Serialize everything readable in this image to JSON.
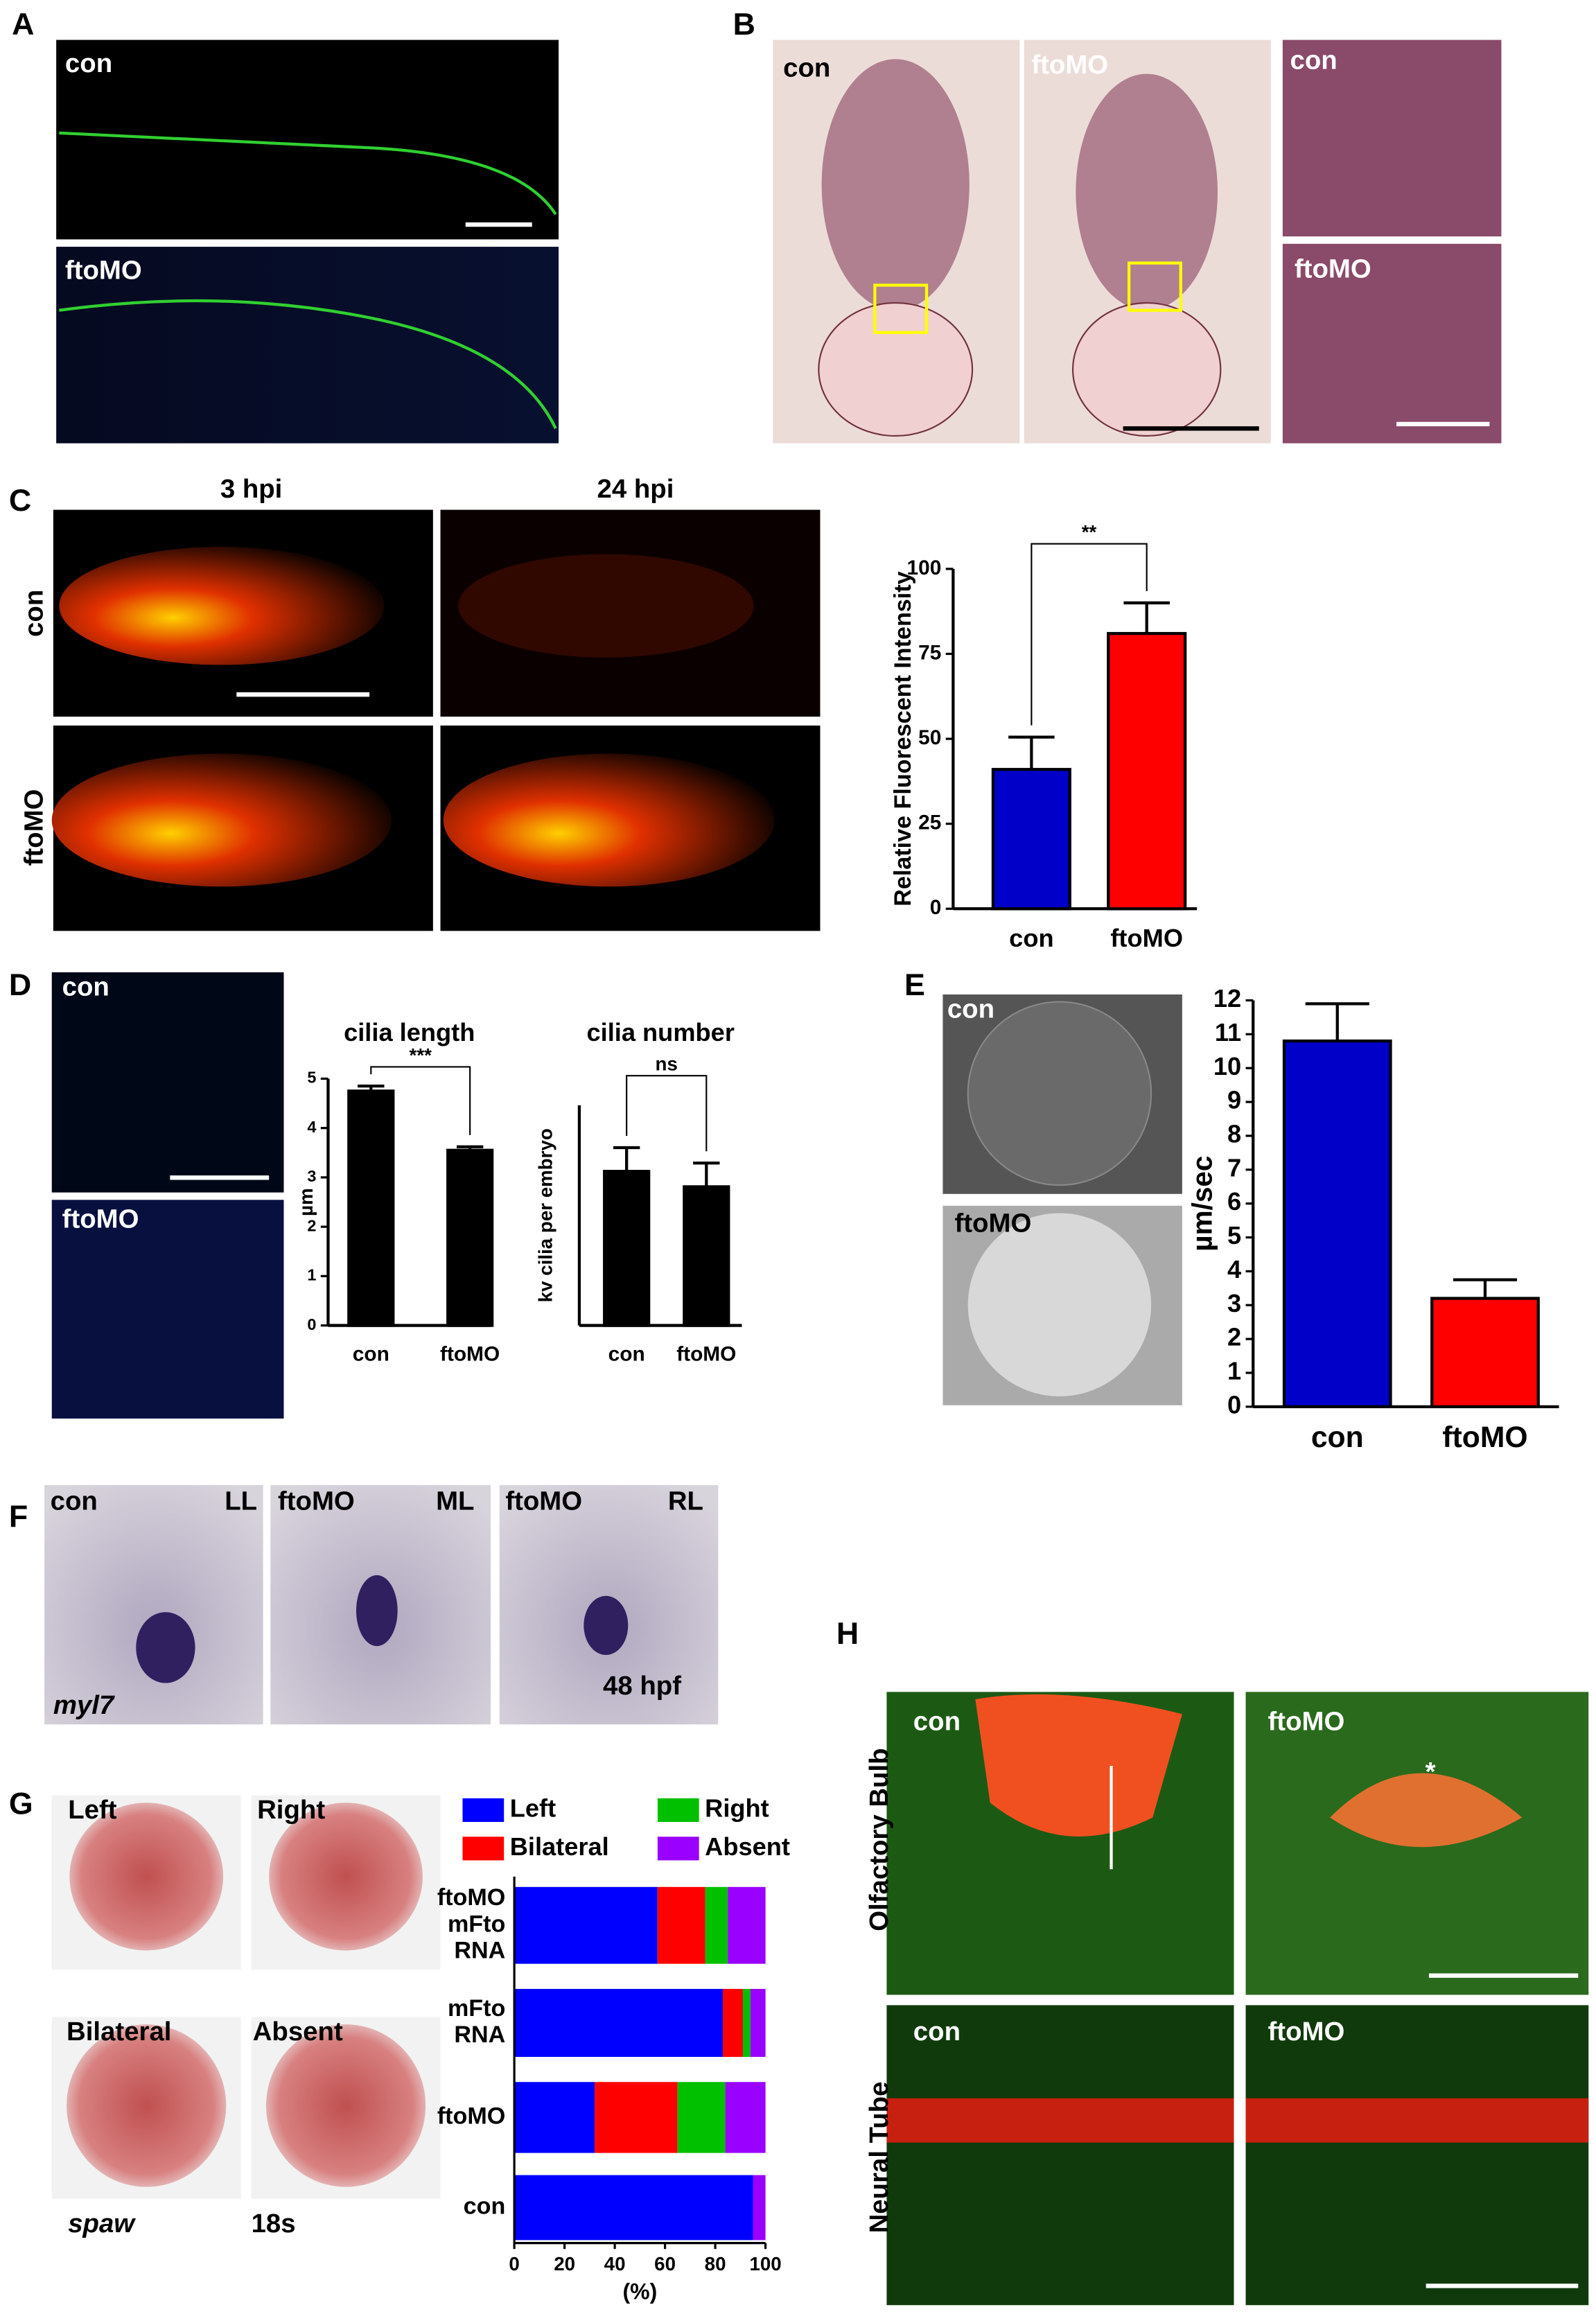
{
  "panel_labels": [
    "A",
    "B",
    "C",
    "D",
    "E",
    "F",
    "G",
    "H"
  ],
  "panel_text": {
    "A": [
      "con",
      "ftoMO"
    ],
    "B": [
      "con",
      "ftoMO",
      "con",
      "ftoMO"
    ],
    "C": [
      "3 hpi",
      "24 hpi",
      "con",
      "ftoMO"
    ],
    "D": [
      "con",
      "ftoMO"
    ],
    "E": [
      "con",
      "ftoMO"
    ],
    "F": [
      "con",
      "LL",
      "ftoMO",
      "ML",
      "ftoMO",
      "RL",
      "myl7",
      "48 hpf"
    ],
    "G": [
      "Left",
      "Right",
      "Bilateral",
      "Absent",
      "spaw",
      "18s"
    ],
    "H": [
      "con",
      "ftoMO",
      "con",
      "ftoMO",
      "Olfactory Bulb",
      "Neural Tube",
      "*"
    ]
  },
  "chart_data": [
    {
      "type": "bar",
      "ylabel": "Relative Fluorescent Intensity",
      "categories": [
        "con",
        "ftoMO"
      ],
      "values": [
        41,
        81
      ],
      "errors": [
        9.5,
        9
      ],
      "colors": [
        "#0000c8",
        "#ff0000"
      ],
      "ylim": [
        0,
        100
      ],
      "yticks": [
        0,
        25,
        50,
        75,
        100
      ],
      "annotation": "**"
    },
    {
      "type": "bar",
      "title": "cilia length",
      "ylabel": "µm",
      "categories": [
        "con",
        "ftoMO"
      ],
      "values": [
        4.75,
        3.55
      ],
      "errors": [
        0.1,
        0.07
      ],
      "colors": [
        "#000000",
        "#000000"
      ],
      "ylim": [
        0,
        5
      ],
      "yticks": [
        0,
        1,
        2,
        3,
        4,
        5
      ],
      "annotation": "***"
    },
    {
      "type": "bar",
      "title": "cilia number",
      "ylabel": "kv cilia per embryo",
      "categories": [
        "con",
        "ftoMO"
      ],
      "values": [
        28,
        25.2
      ],
      "errors": [
        4.3,
        4.3
      ],
      "colors": [
        "#000000",
        "#000000"
      ],
      "ylim": [
        0,
        40
      ],
      "annotation": "ns"
    },
    {
      "type": "bar",
      "ylabel": "µm/sec",
      "categories": [
        "con",
        "ftoMO"
      ],
      "values": [
        10.8,
        3.2
      ],
      "errors": [
        1.1,
        0.55
      ],
      "colors": [
        "#0000c8",
        "#ff0000"
      ],
      "ylim": [
        0,
        12
      ],
      "yticks": [
        0,
        1,
        2,
        3,
        4,
        5,
        6,
        7,
        8,
        9,
        10,
        11,
        12
      ]
    },
    {
      "type": "barh_stacked",
      "xlabel": "(%)",
      "categories": [
        [
          "ftoMO",
          "mFto",
          "RNA"
        ],
        [
          "mFto",
          "RNA"
        ],
        [
          "ftoMO"
        ],
        [
          "con"
        ]
      ],
      "series": [
        {
          "name": "Left",
          "color": "#0000ff",
          "values": [
            57,
            83,
            32,
            95
          ]
        },
        {
          "name": "Bilateral",
          "color": "#ff0000",
          "values": [
            19,
            8,
            33,
            0
          ]
        },
        {
          "name": "Right",
          "color": "#00c000",
          "values": [
            9,
            3,
            19,
            0
          ]
        },
        {
          "name": "Absent",
          "color": "#9900ff",
          "values": [
            15,
            6,
            16,
            5
          ]
        }
      ],
      "xlim": [
        0,
        100
      ],
      "xticks": [
        0,
        20,
        40,
        60,
        80,
        100
      ]
    }
  ]
}
